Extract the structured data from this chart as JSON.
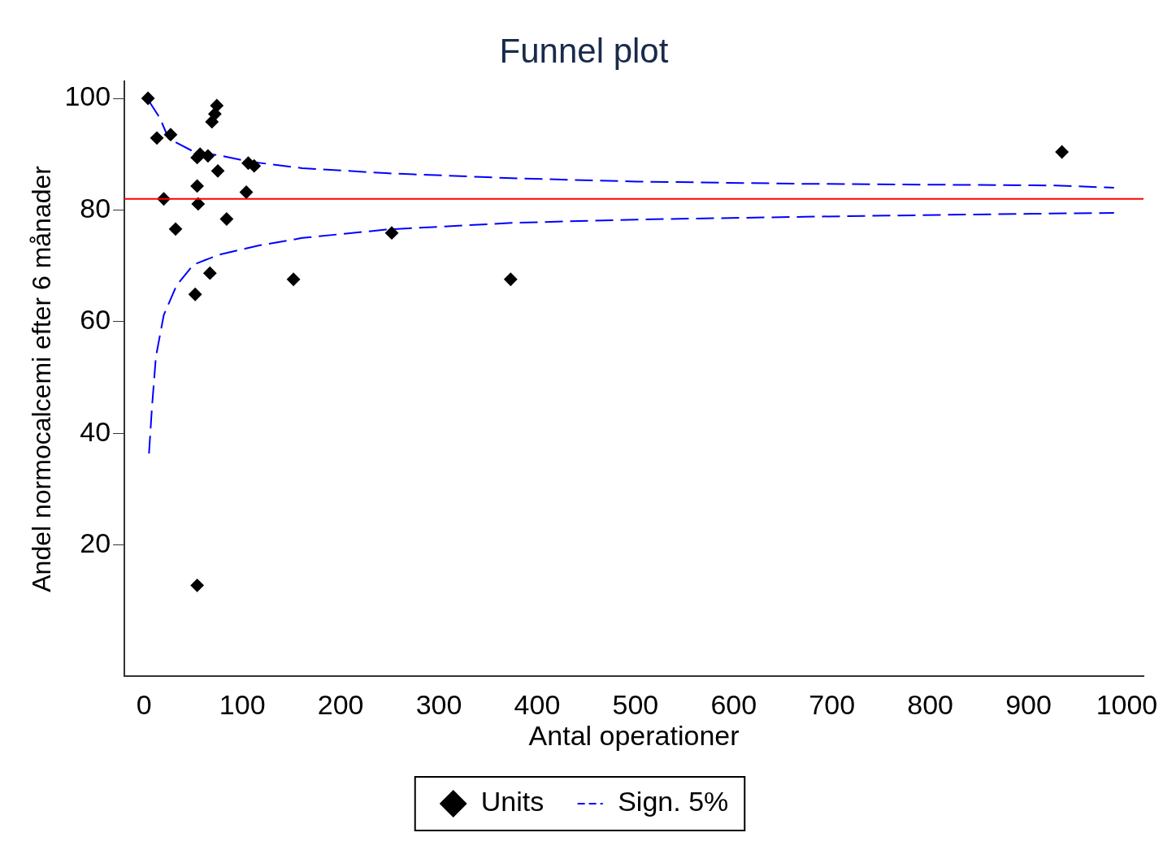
{
  "chart_data": {
    "type": "scatter",
    "title": "Funnel plot",
    "xlabel": "Antal operationer",
    "ylabel": "Andel normocalcemi efter 6 månader",
    "xlim": [
      -20,
      1017
    ],
    "ylim": [
      -3.5,
      103
    ],
    "xticks": [
      0,
      100,
      200,
      300,
      400,
      500,
      600,
      700,
      800,
      900,
      1000
    ],
    "yticks": [
      20,
      40,
      60,
      80,
      100
    ],
    "grid": false,
    "legend": "bottom",
    "ref_lines": [
      {
        "axis": "y",
        "value": 82,
        "color": "#ff0000",
        "line_style": "solid"
      }
    ],
    "series": [
      {
        "name": "Units",
        "color": "#000000",
        "marker": "diamond",
        "x": [
          4,
          13,
          27,
          20,
          74,
          72,
          69,
          54,
          57,
          65,
          75,
          106,
          112,
          54,
          104,
          55,
          84,
          32,
          252,
          67,
          52,
          152,
          373,
          54,
          934
        ],
        "values": [
          100,
          92.9,
          93.5,
          82,
          98.7,
          97.2,
          95.8,
          89.4,
          90,
          89.7,
          87,
          88.4,
          87.9,
          84.3,
          83.2,
          81.1,
          78.4,
          76.6,
          75.9,
          68.7,
          64.9,
          67.6,
          67.6,
          12.8,
          90.4
        ]
      },
      {
        "name": "Sign. 5%",
        "type": "line",
        "color": "#0000ff",
        "marker": "none",
        "line_style": "dashed",
        "x": [
          5,
          16,
          25,
          50,
          76,
          106,
          161,
          246,
          374,
          501,
          672,
          842,
          927,
          987
        ],
        "values": [
          99.5,
          96.5,
          92.8,
          90.5,
          89.8,
          88.7,
          87.5,
          86.6,
          85.7,
          85.1,
          84.7,
          84.5,
          84.4,
          84
        ]
      },
      {
        "type": "line",
        "color": "#0000ff",
        "marker": "none",
        "line_style": "dashed",
        "x": [
          5,
          8,
          12,
          20,
          33,
          50,
          76,
          118,
          161,
          246,
          374,
          501,
          672,
          842,
          987
        ],
        "values": [
          36.4,
          44.7,
          53.7,
          61.2,
          66.5,
          70.2,
          72,
          73.7,
          75,
          76.5,
          77.7,
          78.3,
          78.8,
          79.2,
          79.5
        ]
      }
    ]
  }
}
